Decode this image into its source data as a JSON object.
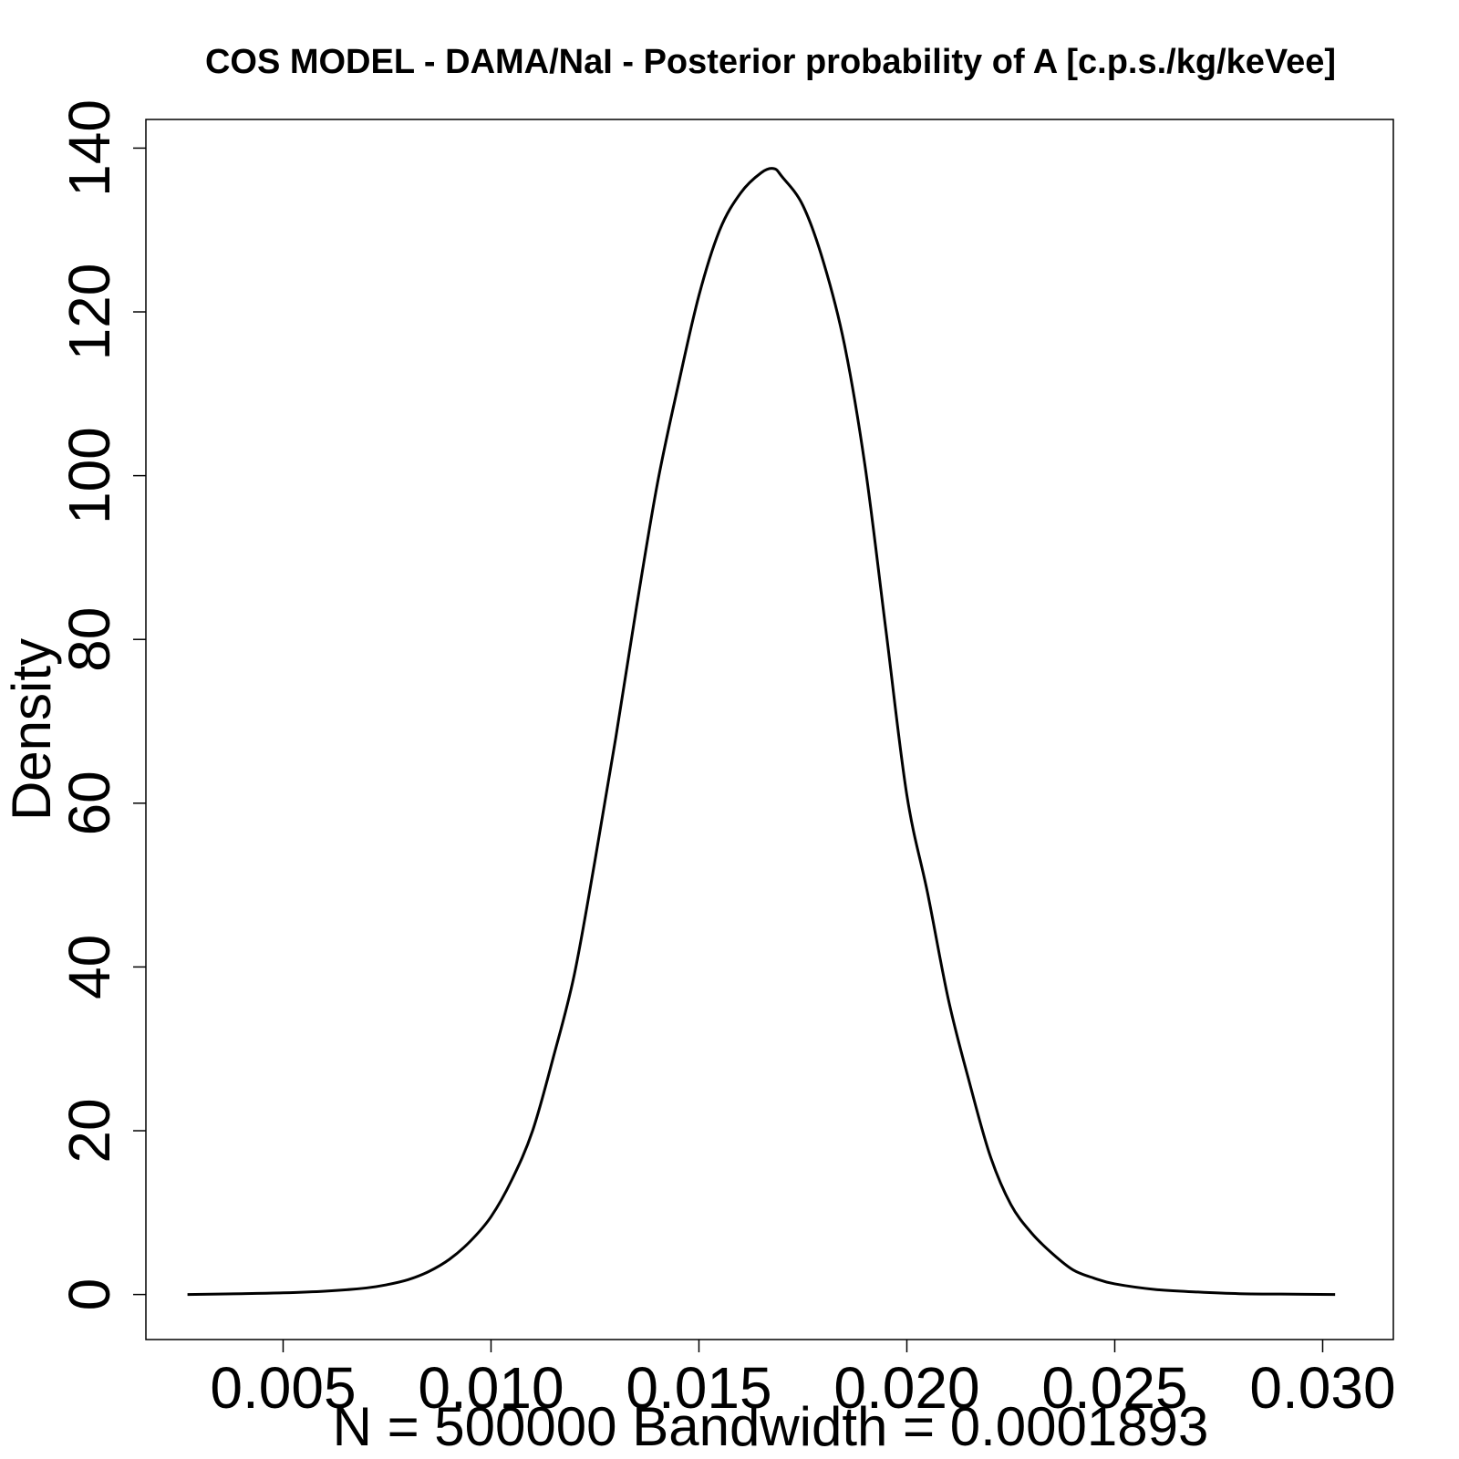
{
  "chart_data": {
    "type": "line",
    "title": "COS MODEL - DAMA/NaI - Posterior probability of A [c.p.s./kg/keVee]",
    "xlabel": "N = 500000   Bandwidth = 0.0001893",
    "ylabel": "Density",
    "xlim": [
      0.0017,
      0.0317
    ],
    "ylim": [
      -5.5,
      143.5
    ],
    "x_ticks": [
      0.005,
      0.01,
      0.015,
      0.02,
      0.025,
      0.03
    ],
    "x_tick_labels": [
      "0.005",
      "0.010",
      "0.015",
      "0.020",
      "0.025",
      "0.030"
    ],
    "y_ticks": [
      0,
      20,
      40,
      60,
      80,
      100,
      120,
      140
    ],
    "y_tick_labels": [
      "0",
      "20",
      "40",
      "60",
      "80",
      "100",
      "120",
      "140"
    ],
    "grid": false,
    "line_color": "#000000",
    "series": [
      {
        "x": [
          0.0027,
          0.004,
          0.005,
          0.006,
          0.007,
          0.0075,
          0.008,
          0.0085,
          0.009,
          0.0095,
          0.01,
          0.0105,
          0.011,
          0.0115,
          0.012,
          0.0125,
          0.013,
          0.0135,
          0.014,
          0.0145,
          0.015,
          0.0155,
          0.016,
          0.0165,
          0.0168,
          0.017,
          0.0175,
          0.018,
          0.0185,
          0.019,
          0.0195,
          0.02,
          0.0205,
          0.021,
          0.0215,
          0.022,
          0.0225,
          0.023,
          0.0235,
          0.024,
          0.0245,
          0.025,
          0.026,
          0.027,
          0.028,
          0.029,
          0.0303
        ],
        "y": [
          0,
          0.1,
          0.2,
          0.4,
          0.8,
          1.2,
          1.8,
          2.8,
          4.3,
          6.5,
          9.5,
          14,
          20,
          29,
          39,
          53,
          68,
          84,
          99,
          111,
          122,
          130,
          134.5,
          137,
          137.5,
          136.5,
          133,
          126,
          116,
          101,
          81,
          61,
          49,
          36,
          26,
          17,
          11,
          7.5,
          5,
          3,
          2,
          1.3,
          0.6,
          0.3,
          0.1,
          0.05,
          0
        ]
      }
    ]
  }
}
